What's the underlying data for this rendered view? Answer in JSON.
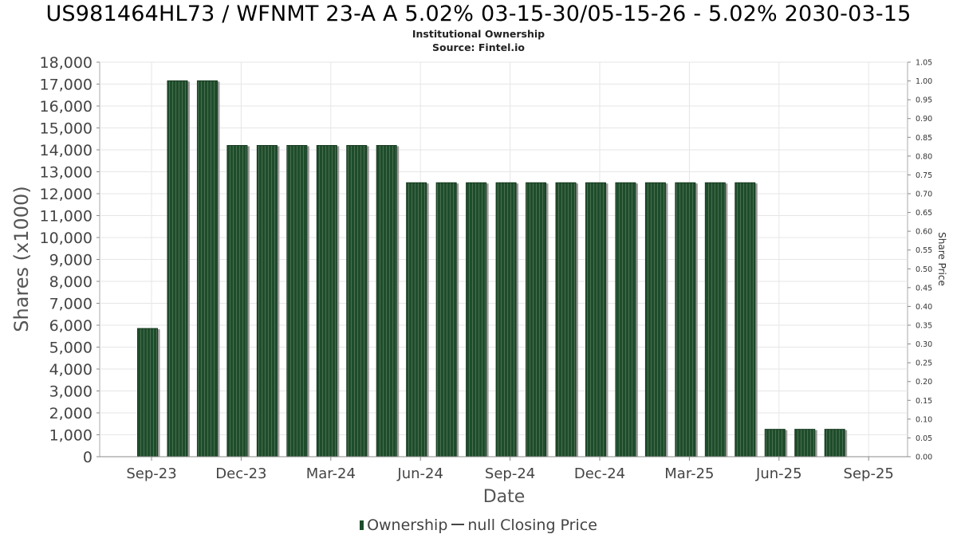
{
  "chart_data": {
    "type": "bar",
    "title": "US981464HL73 / WFNMT 23-A A 5.02% 03-15-30/05-15-26 - 5.02% 2030-03-15",
    "subtitle": [
      "Institutional Ownership",
      "Source: Fintel.io"
    ],
    "xlabel": "Date",
    "ylabel": "Shares (x1000)",
    "y2label": "Share Price",
    "ylim": [
      0,
      18000
    ],
    "y2lim": [
      0,
      1.05
    ],
    "yticks": [
      "0",
      "1,000",
      "2,000",
      "3,000",
      "4,000",
      "5,000",
      "6,000",
      "7,000",
      "8,000",
      "9,000",
      "10,000",
      "11,000",
      "12,000",
      "13,000",
      "14,000",
      "15,000",
      "16,000",
      "17,000",
      "18,000"
    ],
    "y2ticks": [
      "0.00",
      "0.05",
      "0.10",
      "0.15",
      "0.20",
      "0.25",
      "0.30",
      "0.35",
      "0.40",
      "0.45",
      "0.50",
      "0.55",
      "0.60",
      "0.65",
      "0.70",
      "0.75",
      "0.80",
      "0.85",
      "0.90",
      "0.95",
      "1.00",
      "1.05"
    ],
    "xticks": [
      "Sep-23",
      "Dec-23",
      "Mar-24",
      "Jun-24",
      "Sep-24",
      "Dec-24",
      "Mar-25",
      "Jun-25",
      "Sep-25"
    ],
    "grid": true,
    "legend_position": "bottom",
    "series": [
      {
        "name": "Ownership",
        "color": "#1e4d2b",
        "values": [
          5850,
          17150,
          17150,
          14200,
          14200,
          14200,
          14200,
          14200,
          14200,
          12500,
          12500,
          12500,
          12500,
          12500,
          12500,
          12500,
          12500,
          12500,
          12500,
          12500,
          12500,
          1250,
          1250,
          1250
        ]
      },
      {
        "name": "null Closing Price",
        "color": "#444444",
        "values": []
      }
    ]
  },
  "legend": {
    "ownership": "Ownership",
    "price": "null Closing Price"
  }
}
